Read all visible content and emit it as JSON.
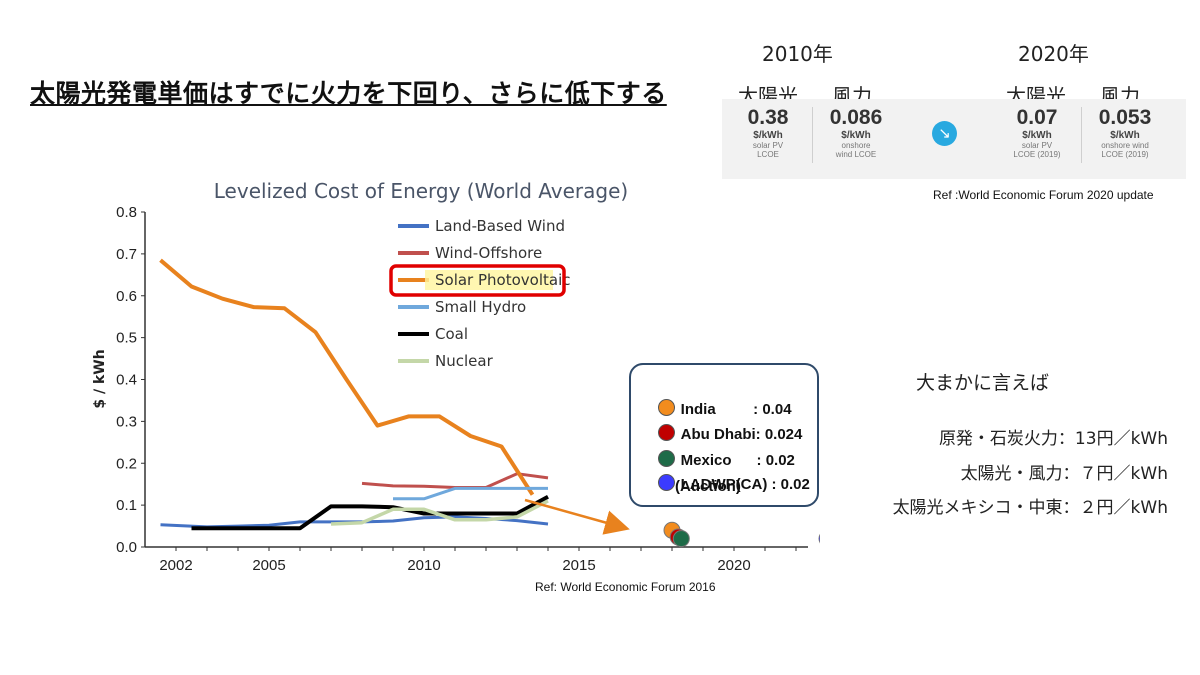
{
  "slide": {
    "title": "太陽光発電単価はすでに火力を下回り、さらに低下する"
  },
  "wef_panel": {
    "year_2010": "2010年",
    "year_2020": "2020年",
    "col_solar_2010": "太陽光",
    "col_wind_2010": "風力",
    "col_solar_2020": "太陽光",
    "col_wind_2020": "風力",
    "items": [
      {
        "value": "0.38",
        "unit": "$/kWh",
        "desc1": "solar PV",
        "desc2": "LCOE"
      },
      {
        "value": "0.086",
        "unit": "$/kWh",
        "desc1": "onshore",
        "desc2": "wind LCOE"
      },
      {
        "value": "0.07",
        "unit": "$/kWh",
        "desc1": "solar PV",
        "desc2": "LCOE (2019)"
      },
      {
        "value": "0.053",
        "unit": "$/kWh",
        "desc1": "onshore wind",
        "desc2": "LCOE (2019)"
      }
    ],
    "arrow_icon": "down-right-arrow-icon",
    "ref": "Ref :World  Economic Forum 2020 update"
  },
  "chart_data": {
    "type": "line",
    "title": "Levelized Cost of Energy (World Average)",
    "ylabel": "$ / kWh",
    "xlabel": "",
    "ylim": [
      0,
      0.8
    ],
    "y_ticks": [
      "0.0",
      "0.1",
      "0.2",
      "0.3",
      "0.4",
      "0.5",
      "0.6",
      "0.7",
      "0.8"
    ],
    "x_ticks": [
      "2002",
      "2005",
      "2010",
      "2015",
      "2020"
    ],
    "grid": false,
    "legend_position": "top-center",
    "highlighted_series": "Solar Photovoltaic",
    "series": [
      {
        "name": "Land-Based Wind",
        "color": "#4472c4",
        "x": [
          2001.5,
          2003,
          2004,
          2005,
          2006,
          2007,
          2008,
          2009,
          2010,
          2011,
          2012,
          2013,
          2014
        ],
        "y": [
          0.053,
          0.048,
          0.05,
          0.052,
          0.06,
          0.06,
          0.06,
          0.062,
          0.07,
          0.072,
          0.068,
          0.063,
          0.055
        ]
      },
      {
        "name": "Wind-Offshore",
        "color": "#c0504d",
        "x": [
          2008,
          2009,
          2010,
          2011,
          2012,
          2013,
          2014
        ],
        "y": [
          0.152,
          0.146,
          0.145,
          0.142,
          0.142,
          0.175,
          0.165
        ]
      },
      {
        "name": "Solar Photovoltaic",
        "color": "#e8821e",
        "x": [
          2001.5,
          2002.5,
          2003.5,
          2004.5,
          2005.5,
          2006.5,
          2007.5,
          2008.5,
          2009.5,
          2010.5,
          2011.5,
          2012.5,
          2013.5
        ],
        "y": [
          0.685,
          0.622,
          0.593,
          0.573,
          0.57,
          0.513,
          0.4,
          0.29,
          0.312,
          0.312,
          0.265,
          0.24,
          0.125
        ]
      },
      {
        "name": "Small Hydro",
        "color": "#6fa8dc",
        "x": [
          2009,
          2010,
          2011,
          2012,
          2013,
          2014
        ],
        "y": [
          0.115,
          0.115,
          0.14,
          0.14,
          0.14,
          0.14
        ]
      },
      {
        "name": "Coal",
        "color": "#000000",
        "x": [
          2002.5,
          2003.5,
          2004.5,
          2005.5,
          2006,
          2007,
          2008,
          2009,
          2010,
          2011,
          2012,
          2013,
          2014
        ],
        "y": [
          0.045,
          0.045,
          0.045,
          0.045,
          0.045,
          0.097,
          0.097,
          0.095,
          0.08,
          0.08,
          0.08,
          0.08,
          0.12
        ]
      },
      {
        "name": "Nuclear",
        "color": "#c4d7a8",
        "x": [
          2007,
          2008,
          2009,
          2010,
          2011,
          2012,
          2013,
          2014
        ],
        "y": [
          0.055,
          0.058,
          0.09,
          0.09,
          0.065,
          0.065,
          0.072,
          0.11
        ]
      }
    ],
    "auction_points": [
      {
        "name": "India",
        "value": 0.04,
        "year": 2018,
        "color": "#f28c1e"
      },
      {
        "name": "Abu Dhabi",
        "value": 0.024,
        "year": 2018.2,
        "color": "#c00000"
      },
      {
        "name": "Mexico",
        "value": 0.02,
        "year": 2018.3,
        "color": "#1e6b48"
      },
      {
        "name": "LADWP(CA)",
        "value": 0.02,
        "year": 2023,
        "color": "#3b3bff"
      }
    ]
  },
  "callout": {
    "rows": [
      {
        "label": "India         : 0.04",
        "color": "#f28c1e"
      },
      {
        "label": "Abu Dhabi: 0.024",
        "color": "#c00000"
      },
      {
        "label": "Mexico      : 0.02",
        "color": "#1e6b48"
      },
      {
        "label": "LADWP(CA) : 0.02",
        "color": "#3b3bff"
      }
    ],
    "note": "(Auction)"
  },
  "chart_ref": "Ref: World  Economic Forum 2016",
  "summary": {
    "heading": "大まかに言えば",
    "line1": "原発・石炭火力：13円／kWh",
    "line2": "太陽光・風力：７円／kWh",
    "line3": "太陽光メキシコ・中東：２円／kWh"
  }
}
